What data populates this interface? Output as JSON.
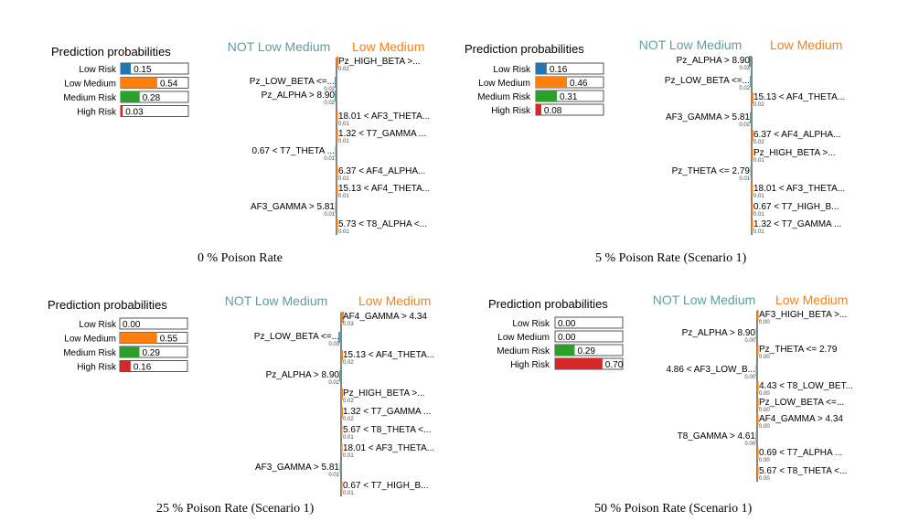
{
  "chart_data": [
    {
      "type": "bar",
      "caption": "0 % Poison Rate",
      "probabilities": {
        "title": "Prediction probabilities",
        "categories": [
          "Low Risk",
          "Low Medium",
          "Medium Risk",
          "High Risk"
        ],
        "values": [
          0.15,
          0.54,
          0.28,
          0.03
        ],
        "labels": [
          "0.15",
          "0.54",
          "0.28",
          "0.03"
        ],
        "colors": [
          "#1f77b4",
          "#ff7f0e",
          "#2ca02c",
          "#d62728"
        ],
        "xlim": [
          0,
          1
        ]
      },
      "explanation": {
        "left_title": "NOT Low Medium",
        "right_title": "Low Medium",
        "left_color": "#5f9ea0",
        "right_color": "#ff7f0e",
        "bars": [
          {
            "label": "Pz_HIGH_BETA >...",
            "weight": 0.02,
            "weight_label": "0.02",
            "side": "right"
          },
          {
            "label": "Pz_LOW_BETA <=...",
            "weight": 0.02,
            "weight_label": "0.02",
            "side": "left"
          },
          {
            "label": "Pz_ALPHA > 8.90",
            "weight": 0.02,
            "weight_label": "0.02",
            "side": "left"
          },
          {
            "label": "18.01 < AF3_THETA...",
            "weight": 0.01,
            "weight_label": "0.01",
            "side": "right"
          },
          {
            "label": "1.32 < T7_GAMMA ...",
            "weight": 0.01,
            "weight_label": "0.01",
            "side": "right"
          },
          {
            "label": "0.67 < T7_THETA ...",
            "weight": 0.01,
            "weight_label": "0.01",
            "side": "left"
          },
          {
            "label": "6.37 < AF4_ALPHA...",
            "weight": 0.01,
            "weight_label": "0.01",
            "side": "right"
          },
          {
            "label": "15.13 < AF4_THETA...",
            "weight": 0.01,
            "weight_label": "0.01",
            "side": "right"
          },
          {
            "label": "AF3_GAMMA > 5.81",
            "weight": 0.01,
            "weight_label": "0.01",
            "side": "left"
          },
          {
            "label": "5.73 < T8_ALPHA <...",
            "weight": 0.01,
            "weight_label": "0.01",
            "side": "right"
          }
        ]
      }
    },
    {
      "type": "bar",
      "caption": "5 % Poison Rate (Scenario 1)",
      "probabilities": {
        "title": "Prediction probabilities",
        "categories": [
          "Low Risk",
          "Low Medium",
          "Medium Risk",
          "High Risk"
        ],
        "values": [
          0.16,
          0.46,
          0.31,
          0.08
        ],
        "labels": [
          "0.16",
          "0.46",
          "0.31",
          "0.08"
        ],
        "colors": [
          "#1f77b4",
          "#ff7f0e",
          "#2ca02c",
          "#d62728"
        ],
        "xlim": [
          0,
          1
        ]
      },
      "explanation": {
        "left_title": "NOT Low Medium",
        "right_title": "Low Medium",
        "left_color": "#5f9ea0",
        "right_color": "#ff7f0e",
        "bars": [
          {
            "label": "Pz_ALPHA > 8.90",
            "weight": 0.03,
            "weight_label": "0.03",
            "side": "left"
          },
          {
            "label": "Pz_LOW_BETA <=...",
            "weight": 0.02,
            "weight_label": "0.02",
            "side": "left"
          },
          {
            "label": "15.13 < AF4_THETA...",
            "weight": 0.02,
            "weight_label": "0.02",
            "side": "right"
          },
          {
            "label": "AF3_GAMMA > 5.81",
            "weight": 0.02,
            "weight_label": "0.02",
            "side": "left"
          },
          {
            "label": "6.37 < AF4_ALPHA...",
            "weight": 0.02,
            "weight_label": "0.02",
            "side": "right"
          },
          {
            "label": "Pz_HIGH_BETA >...",
            "weight": 0.01,
            "weight_label": "0.01",
            "side": "right"
          },
          {
            "label": "Pz_THETA <= 2.79",
            "weight": 0.01,
            "weight_label": "0.01",
            "side": "left"
          },
          {
            "label": "18.01 < AF3_THETA...",
            "weight": 0.01,
            "weight_label": "0.01",
            "side": "right"
          },
          {
            "label": "0.67 < T7_HIGH_B...",
            "weight": 0.01,
            "weight_label": "0.01",
            "side": "right"
          },
          {
            "label": "1.32 < T7_GAMMA ...",
            "weight": 0.01,
            "weight_label": "0.01",
            "side": "right"
          }
        ]
      }
    },
    {
      "type": "bar",
      "caption": "25 % Poison Rate (Scenario 1)",
      "probabilities": {
        "title": "Prediction probabilities",
        "categories": [
          "Low Risk",
          "Low Medium",
          "Medium Risk",
          "High Risk"
        ],
        "values": [
          0.0,
          0.55,
          0.29,
          0.16
        ],
        "labels": [
          "0.00",
          "0.55",
          "0.29",
          "0.16"
        ],
        "colors": [
          "#1f77b4",
          "#ff7f0e",
          "#2ca02c",
          "#d62728"
        ],
        "xlim": [
          0,
          1
        ]
      },
      "explanation": {
        "left_title": "NOT Low Medium",
        "right_title": "Low Medium",
        "left_color": "#5f9ea0",
        "right_color": "#ff7f0e",
        "bars": [
          {
            "label": "AF4_GAMMA > 4.34",
            "weight": 0.03,
            "weight_label": "0.03",
            "side": "right"
          },
          {
            "label": "Pz_LOW_BETA <=...",
            "weight": 0.03,
            "weight_label": "0.03",
            "side": "left"
          },
          {
            "label": "15.13 < AF4_THETA...",
            "weight": 0.02,
            "weight_label": "0.02",
            "side": "right"
          },
          {
            "label": "Pz_ALPHA > 8.90",
            "weight": 0.02,
            "weight_label": "0.02",
            "side": "left"
          },
          {
            "label": "Pz_HIGH_BETA >...",
            "weight": 0.02,
            "weight_label": "0.02",
            "side": "right"
          },
          {
            "label": "1.32 < T7_GAMMA ...",
            "weight": 0.02,
            "weight_label": "0.02",
            "side": "right"
          },
          {
            "label": "5.67 < T8_THETA <...",
            "weight": 0.01,
            "weight_label": "0.01",
            "side": "right"
          },
          {
            "label": "18.01 < AF3_THETA...",
            "weight": 0.01,
            "weight_label": "0.01",
            "side": "right"
          },
          {
            "label": "AF3_GAMMA > 5.81",
            "weight": 0.01,
            "weight_label": "0.01",
            "side": "left"
          },
          {
            "label": "0.67 < T7_HIGH_B...",
            "weight": 0.01,
            "weight_label": "0.01",
            "side": "right"
          }
        ]
      }
    },
    {
      "type": "bar",
      "caption": "50 % Poison Rate (Scenario 1)",
      "probabilities": {
        "title": "Prediction probabilities",
        "categories": [
          "Low Risk",
          "Low Medium",
          "Medium Risk",
          "High Risk"
        ],
        "values": [
          0.0,
          0.0,
          0.29,
          0.7
        ],
        "labels": [
          "0.00",
          "0.00",
          "0.29",
          "0.70"
        ],
        "colors": [
          "#1f77b4",
          "#ff7f0e",
          "#2ca02c",
          "#d62728"
        ],
        "xlim": [
          0,
          1
        ]
      },
      "explanation": {
        "left_title": "NOT Low Medium",
        "right_title": "Low Medium",
        "left_color": "#5f9ea0",
        "right_color": "#ff7f0e",
        "bars": [
          {
            "label": "AF3_HIGH_BETA >...",
            "weight": 0.0,
            "weight_label": "0.00",
            "side": "right"
          },
          {
            "label": "Pz_ALPHA > 8.90",
            "weight": 0.0,
            "weight_label": "0.00",
            "side": "left"
          },
          {
            "label": "Pz_THETA <= 2.79",
            "weight": 0.0,
            "weight_label": "0.00",
            "side": "right"
          },
          {
            "label": "4.86 < AF3_LOW_B...",
            "weight": 0.0,
            "weight_label": "0.00",
            "side": "left"
          },
          {
            "label": "4.43 < T8_LOW_BET...",
            "weight": 0.0,
            "weight_label": "0.00",
            "side": "right"
          },
          {
            "label": "Pz_LOW_BETA <=...",
            "weight": 0.0,
            "weight_label": "0.00",
            "side": "right"
          },
          {
            "label": "AF4_GAMMA > 4.34",
            "weight": 0.0,
            "weight_label": "0.00",
            "side": "right"
          },
          {
            "label": "T8_GAMMA > 4.61",
            "weight": 0.0,
            "weight_label": "0.00",
            "side": "left"
          },
          {
            "label": "0.69 < T7_ALPHA ...",
            "weight": 0.0,
            "weight_label": "0.00",
            "side": "right"
          },
          {
            "label": "5.67 < T8_THETA <...",
            "weight": 0.0,
            "weight_label": "0.00",
            "side": "right"
          }
        ]
      }
    }
  ]
}
